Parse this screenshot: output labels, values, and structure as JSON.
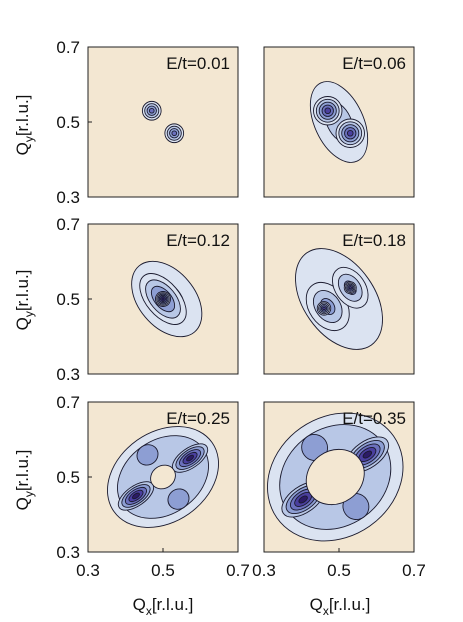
{
  "figure": {
    "y_label": {
      "main": "Q",
      "sub": "y",
      "unit": "[r.l.u.]"
    },
    "x_label": {
      "main": "Q",
      "sub": "x",
      "unit": "[r.l.u.]"
    },
    "colors": {
      "panel_background": "#f3e7d2",
      "contour_fill_levels": [
        "#dbe3f1",
        "#b8c7e6",
        "#8d9ed3",
        "#6b70bd",
        "#4a3f9e",
        "#2c1b66"
      ],
      "contour_line": "#1a1a2e"
    }
  },
  "chart_data": [
    {
      "type": "heatmap",
      "title": "E/t=0.01",
      "xlim": [
        0.3,
        0.7
      ],
      "ylim": [
        0.3,
        0.7
      ],
      "xticks": [],
      "yticks": [
        "0.3",
        "0.5",
        "0.7"
      ],
      "grid": false,
      "blobs": [
        {
          "x": 0.47,
          "y": 0.53,
          "rx": 0.025,
          "ry": 0.025,
          "rot": 0,
          "levels": 4
        },
        {
          "x": 0.53,
          "y": 0.47,
          "rx": 0.025,
          "ry": 0.025,
          "rot": 0,
          "levels": 4
        }
      ]
    },
    {
      "type": "heatmap",
      "title": "E/t=0.06",
      "xlim": [
        0.3,
        0.7
      ],
      "ylim": [
        0.3,
        0.7
      ],
      "xticks": [],
      "yticks": [],
      "grid": false,
      "blobs": [
        {
          "x": 0.5,
          "y": 0.5,
          "rx": 0.065,
          "ry": 0.115,
          "rot": -25,
          "levels": 2
        },
        {
          "x": 0.47,
          "y": 0.53,
          "rx": 0.038,
          "ry": 0.038,
          "rot": 0,
          "levels": 5
        },
        {
          "x": 0.53,
          "y": 0.47,
          "rx": 0.038,
          "ry": 0.038,
          "rot": 0,
          "levels": 5
        }
      ]
    },
    {
      "type": "heatmap",
      "title": "E/t=0.12",
      "xlim": [
        0.3,
        0.7
      ],
      "ylim": [
        0.3,
        0.7
      ],
      "xticks": [],
      "yticks": [
        "0.3",
        "0.5",
        "0.7"
      ],
      "grid": false,
      "blobs": [
        {
          "x": 0.51,
          "y": 0.5,
          "rx": 0.075,
          "ry": 0.115,
          "rot": -40,
          "levels": 2
        },
        {
          "x": 0.5,
          "y": 0.5,
          "rx": 0.045,
          "ry": 0.08,
          "rot": -40,
          "levels": 4
        },
        {
          "x": 0.5,
          "y": 0.5,
          "rx": 0.02,
          "ry": 0.02,
          "rot": 0,
          "levels": 6
        }
      ]
    },
    {
      "type": "heatmap",
      "title": "E/t=0.18",
      "xlim": [
        0.3,
        0.7
      ],
      "ylim": [
        0.3,
        0.7
      ],
      "xticks": [],
      "yticks": [],
      "grid": false,
      "blobs": [
        {
          "x": 0.5,
          "y": 0.5,
          "rx": 0.095,
          "ry": 0.15,
          "rot": -35,
          "levels": 1
        },
        {
          "x": 0.47,
          "y": 0.48,
          "rx": 0.05,
          "ry": 0.07,
          "rot": -35,
          "levels": 3
        },
        {
          "x": 0.53,
          "y": 0.53,
          "rx": 0.04,
          "ry": 0.06,
          "rot": -35,
          "levels": 3
        },
        {
          "x": 0.46,
          "y": 0.475,
          "rx": 0.018,
          "ry": 0.018,
          "rot": 0,
          "levels": 5
        },
        {
          "x": 0.53,
          "y": 0.53,
          "rx": 0.016,
          "ry": 0.016,
          "rot": 0,
          "levels": 5
        }
      ]
    },
    {
      "type": "heatmap",
      "title": "E/t=0.25",
      "xlim": [
        0.3,
        0.7
      ],
      "ylim": [
        0.3,
        0.7
      ],
      "xticks": [
        "0.3",
        "0.5",
        "0.7"
      ],
      "yticks": [
        "0.3",
        "0.5",
        "0.7"
      ],
      "grid": false,
      "ring": {
        "x": 0.5,
        "y": 0.5,
        "rx": 0.16,
        "ry": 0.12,
        "rot": -35,
        "hole_r": 0.03,
        "peak_levels": 5
      }
    },
    {
      "type": "heatmap",
      "title": "E/t=0.35",
      "xlim": [
        0.3,
        0.7
      ],
      "ylim": [
        0.3,
        0.7
      ],
      "xticks": [
        "0.3",
        "0.5",
        "0.7"
      ],
      "yticks": [],
      "grid": false,
      "ring": {
        "x": 0.49,
        "y": 0.5,
        "rx": 0.19,
        "ry": 0.16,
        "rot": -35,
        "hole_r": 0.07,
        "peak_levels": 5
      }
    }
  ]
}
